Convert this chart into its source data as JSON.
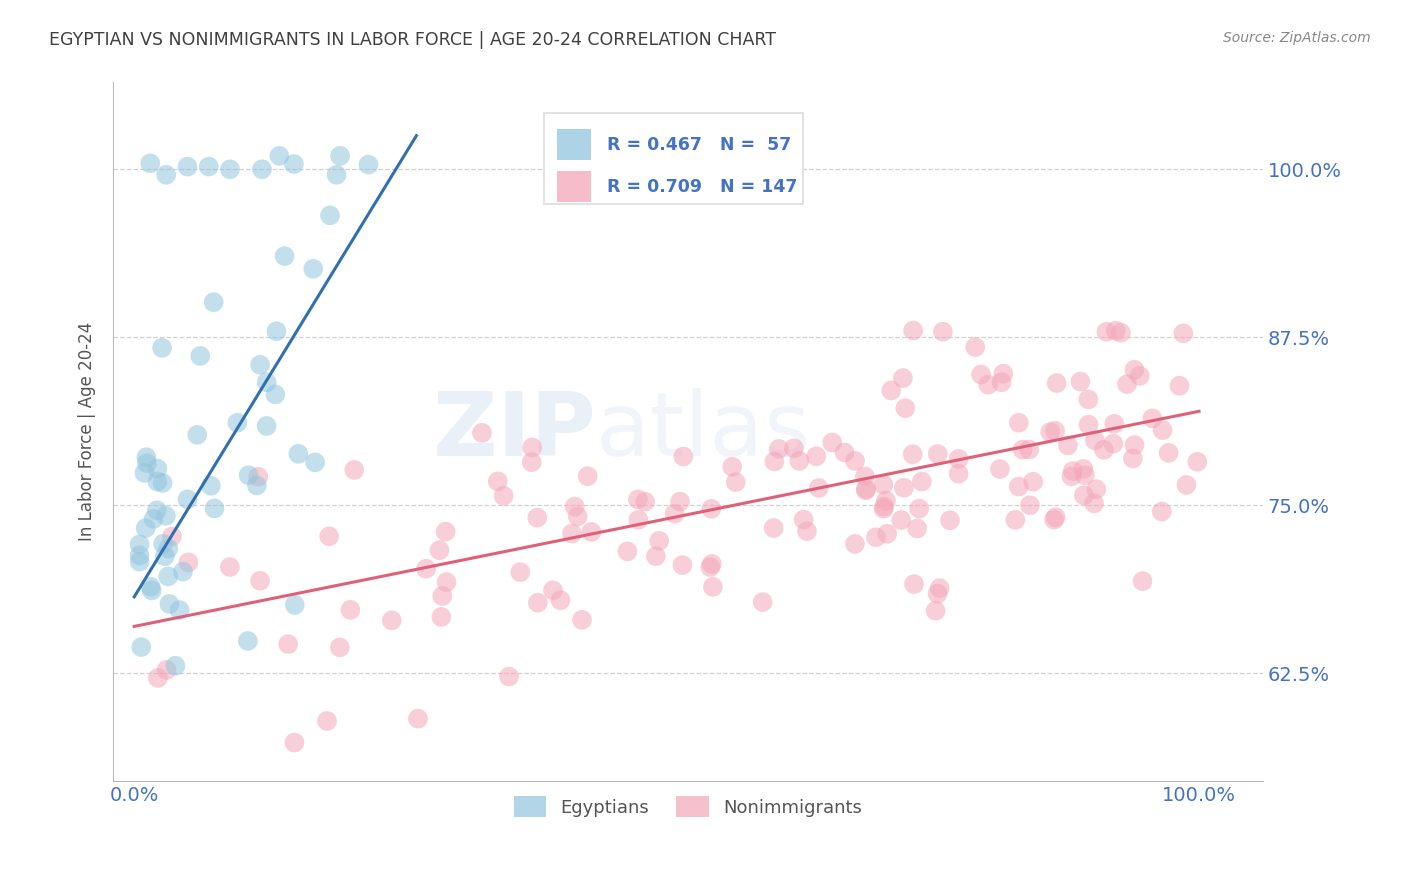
{
  "title": "EGYPTIAN VS NONIMMIGRANTS IN LABOR FORCE | AGE 20-24 CORRELATION CHART",
  "source": "Source: ZipAtlas.com",
  "ylabel": "In Labor Force | Age 20-24",
  "xlim": [
    -0.02,
    1.06
  ],
  "ylim": [
    0.545,
    1.065
  ],
  "ytick_vals": [
    0.625,
    0.75,
    0.875,
    1.0
  ],
  "ytick_labels": [
    "62.5%",
    "75.0%",
    "87.5%",
    "100.0%"
  ],
  "xtick_vals": [
    0.0,
    1.0
  ],
  "xtick_labels": [
    "0.0%",
    "100.0%"
  ],
  "watermark": "ZIPAtlas",
  "dot_color_blue": "#92c5de",
  "dot_color_pink": "#f4a6b8",
  "line_color_blue": "#3070b0",
  "line_color_pink": "#e0607a",
  "background_color": "#ffffff",
  "grid_color": "#cccccc",
  "title_color": "#404040",
  "axis_label_color": "#555555",
  "tick_color": "#4472c4",
  "source_color": "#888888",
  "legend_box_color": "#dddddd",
  "blue_line_x0": 0.0,
  "blue_line_y0": 0.682,
  "blue_line_x1": 0.265,
  "blue_line_y1": 1.025,
  "pink_line_x0": 0.0,
  "pink_line_y0": 0.66,
  "pink_line_x1": 1.0,
  "pink_line_y1": 0.82
}
